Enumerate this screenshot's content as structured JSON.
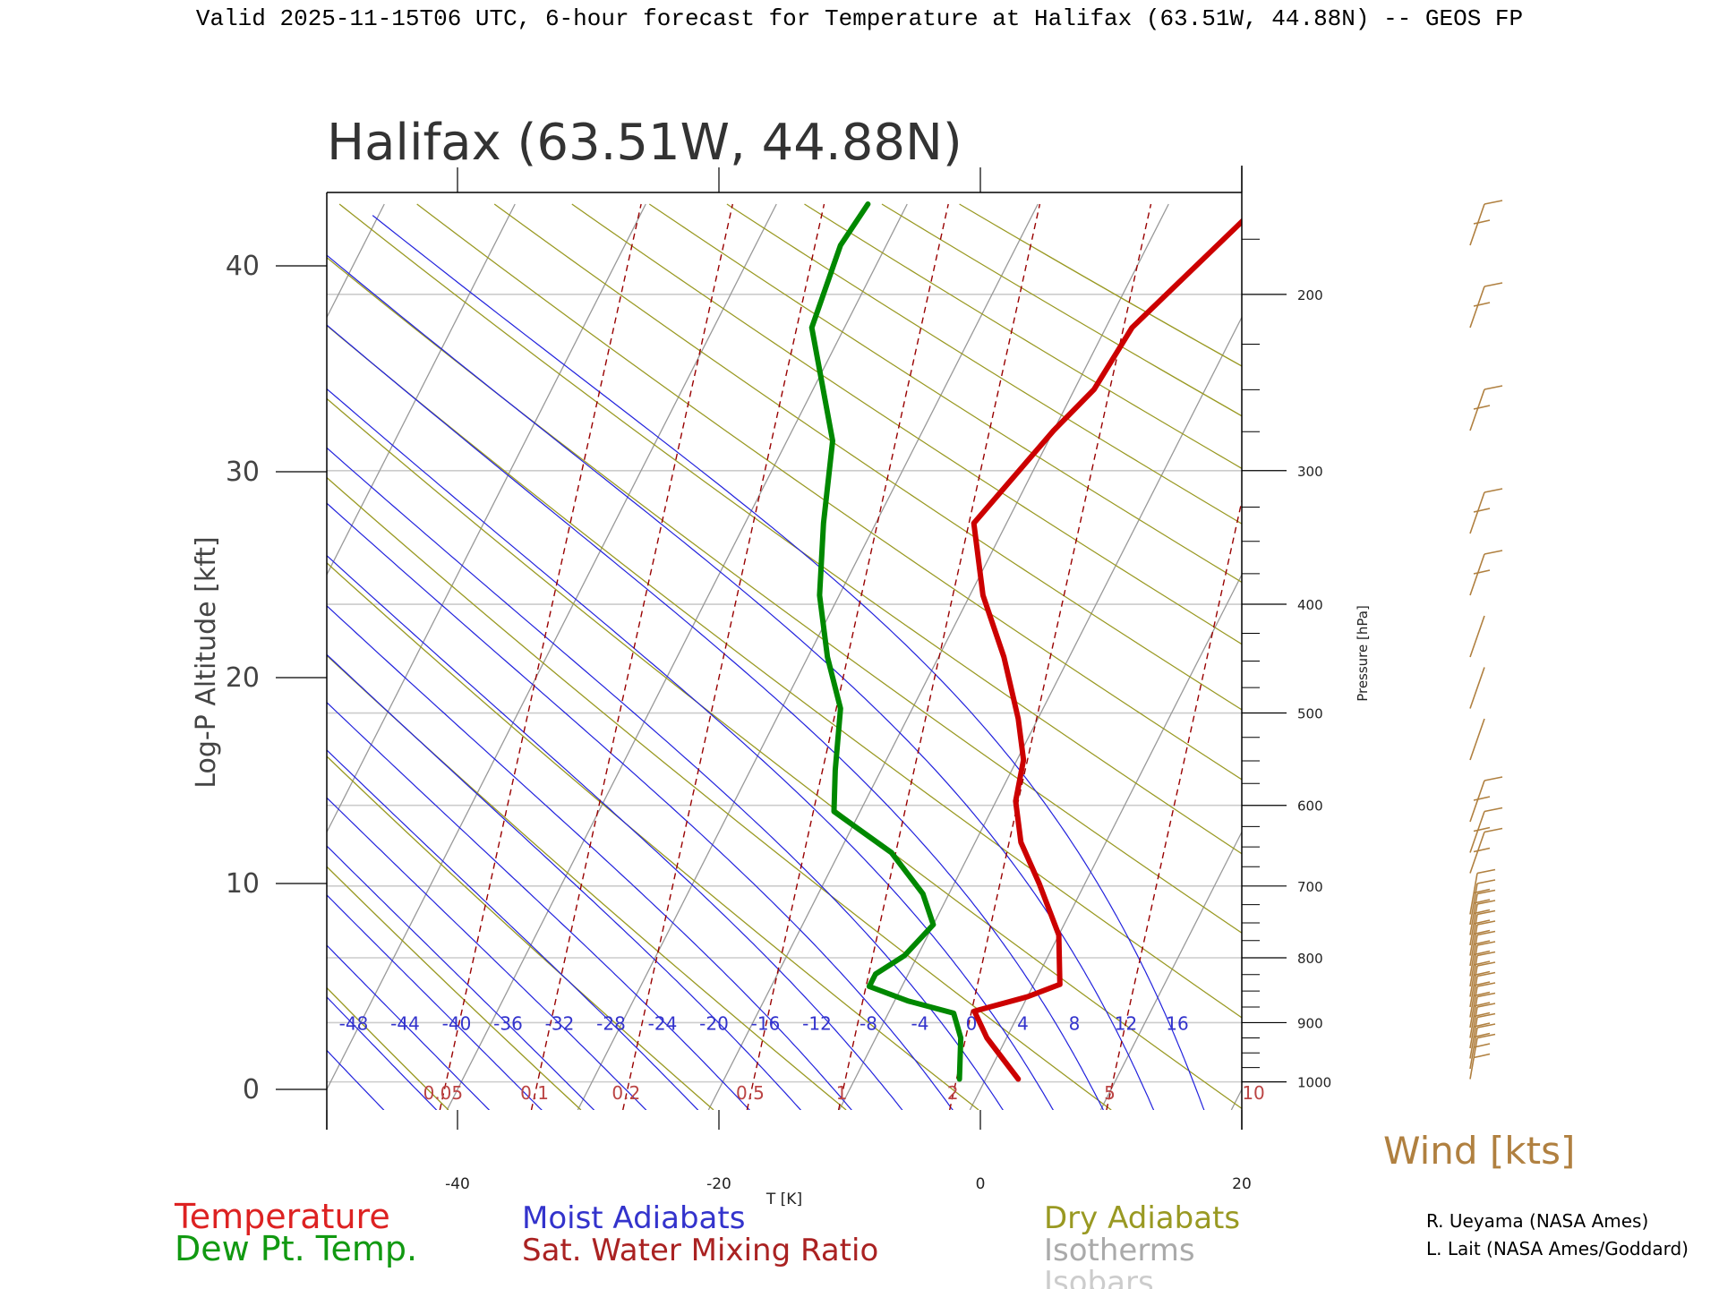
{
  "header": "Valid 2025-11-15T06 UTC, 6-hour forecast for Temperature at Halifax (63.51W, 44.88N) -- GEOS FP",
  "chart_data": {
    "type": "skew-t",
    "title": "Halifax (63.51W, 44.88N)",
    "xlabel": "T [K]",
    "ylabel_left": "Log-P Altitude [kft]",
    "ylabel_right": "Pressure [hPa]",
    "xlim": [
      -50,
      20
    ],
    "ylim_kft": [
      -1,
      43
    ],
    "skew_kft_per_deg": 0.8,
    "x_ticks": [
      -40,
      -20,
      0,
      20
    ],
    "y_ticks_kft": [
      0,
      10,
      20,
      30,
      40
    ],
    "pressure_labels": [
      {
        "p": 1000,
        "label": "1000"
      },
      {
        "p": 900,
        "label": "900"
      },
      {
        "p": 800,
        "label": "800"
      },
      {
        "p": 700,
        "label": "700"
      },
      {
        "p": 600,
        "label": "600"
      },
      {
        "p": 500,
        "label": "500"
      },
      {
        "p": 400,
        "label": "400"
      },
      {
        "p": 300,
        "label": "300"
      },
      {
        "p": 200,
        "label": "200"
      }
    ],
    "pressure_minor_ticks": [
      975,
      950,
      925,
      875,
      850,
      825,
      775,
      750,
      725,
      675,
      650,
      625,
      575,
      550,
      525,
      475,
      450,
      425,
      375,
      350,
      325,
      275,
      250,
      225,
      175
    ],
    "isobars_hpa": [
      1000,
      900,
      800,
      700,
      600,
      500,
      400,
      300,
      200
    ],
    "isotherms_c": [
      -130,
      -120,
      -110,
      -100,
      -90,
      -80,
      -70,
      -60,
      -50,
      -40,
      -30,
      -20,
      -10,
      0,
      10,
      20
    ],
    "dry_adiabats_thetas_k": [
      230,
      240,
      250,
      260,
      270,
      280,
      290,
      300,
      310,
      320,
      330,
      340,
      350,
      360,
      370,
      380,
      390,
      400
    ],
    "moist_adiabats_c": [
      -48,
      -44,
      -40,
      -36,
      -32,
      -28,
      -24,
      -20,
      -16,
      -12,
      -8,
      -4,
      0,
      4,
      8,
      12,
      16
    ],
    "moist_adiabat_labels": [
      "-48",
      "-44",
      "-40",
      "-36",
      "-32",
      "-28",
      "-24",
      "-20",
      "-16",
      "-12",
      "-8",
      "-4",
      "0",
      "4",
      "8",
      "12",
      "16"
    ],
    "mixing_ratio_lines": [
      {
        "w": 0.05,
        "label": "0.05",
        "t_sfc": -41
      },
      {
        "w": 0.1,
        "label": "0.1",
        "t_sfc": -34
      },
      {
        "w": 0.2,
        "label": "0.2",
        "t_sfc": -27
      },
      {
        "w": 0.5,
        "label": "0.5",
        "t_sfc": -17.5
      },
      {
        "w": 1,
        "label": "1",
        "t_sfc": -10.5
      },
      {
        "w": 2,
        "label": "2",
        "t_sfc": -2
      },
      {
        "w": 5,
        "label": "5",
        "t_sfc": 10
      },
      {
        "w": 10,
        "label": "10",
        "t_sfc": 21
      }
    ],
    "series": [
      {
        "name": "Temperature",
        "color": "#cc0000",
        "points": [
          {
            "kft": 0.5,
            "t": 2.5
          },
          {
            "kft": 1.5,
            "t": 0.5
          },
          {
            "kft": 2.5,
            "t": -1.5
          },
          {
            "kft": 3.8,
            "t": -3.5
          },
          {
            "kft": 4.5,
            "t": 0.0
          },
          {
            "kft": 5.1,
            "t": 2.0
          },
          {
            "kft": 7.5,
            "t": 0.0
          },
          {
            "kft": 10.0,
            "t": -3.5
          },
          {
            "kft": 12.0,
            "t": -6.5
          },
          {
            "kft": 14.0,
            "t": -8.5
          },
          {
            "kft": 16.0,
            "t": -9.5
          },
          {
            "kft": 18.0,
            "t": -11.5
          },
          {
            "kft": 21.0,
            "t": -15.0
          },
          {
            "kft": 24.0,
            "t": -19.0
          },
          {
            "kft": 27.5,
            "t": -22.5
          },
          {
            "kft": 32.0,
            "t": -20.0
          },
          {
            "kft": 34.0,
            "t": -18.5
          },
          {
            "kft": 37.0,
            "t": -18.0
          },
          {
            "kft": 43.0,
            "t": -13.0
          }
        ]
      },
      {
        "name": "Dew Pt. Temp.",
        "color": "#008800",
        "points": [
          {
            "kft": 0.5,
            "t": -2.0
          },
          {
            "kft": 2.5,
            "t": -3.5
          },
          {
            "kft": 3.7,
            "t": -5.0
          },
          {
            "kft": 4.3,
            "t": -9.0
          },
          {
            "kft": 5.0,
            "t": -12.5
          },
          {
            "kft": 5.6,
            "t": -12.5
          },
          {
            "kft": 6.5,
            "t": -11.0
          },
          {
            "kft": 8.0,
            "t": -10.0
          },
          {
            "kft": 9.5,
            "t": -12.0
          },
          {
            "kft": 11.5,
            "t": -16.0
          },
          {
            "kft": 13.5,
            "t": -22.0
          },
          {
            "kft": 15.5,
            "t": -23.5
          },
          {
            "kft": 18.5,
            "t": -25.5
          },
          {
            "kft": 21.0,
            "t": -28.5
          },
          {
            "kft": 24.0,
            "t": -31.5
          },
          {
            "kft": 27.5,
            "t": -34.0
          },
          {
            "kft": 31.5,
            "t": -36.5
          },
          {
            "kft": 37.0,
            "t": -42.5
          },
          {
            "kft": 41.0,
            "t": -43.5
          },
          {
            "kft": 43.0,
            "t": -43.0
          }
        ]
      }
    ],
    "wind_barbs_kft": [
      {
        "kft": 0.5,
        "barbs": 1
      },
      {
        "kft": 1.0,
        "barbs": 1
      },
      {
        "kft": 1.5,
        "barbs": 1
      },
      {
        "kft": 2.0,
        "barbs": 1
      },
      {
        "kft": 2.5,
        "barbs": 1
      },
      {
        "kft": 3.0,
        "barbs": 1
      },
      {
        "kft": 3.5,
        "barbs": 1
      },
      {
        "kft": 4.0,
        "barbs": 1
      },
      {
        "kft": 4.5,
        "barbs": 1
      },
      {
        "kft": 5.0,
        "barbs": 1
      },
      {
        "kft": 5.5,
        "barbs": 1
      },
      {
        "kft": 6.0,
        "barbs": 1
      },
      {
        "kft": 6.5,
        "barbs": 1
      },
      {
        "kft": 7.0,
        "barbs": 1
      },
      {
        "kft": 7.5,
        "barbs": 1
      },
      {
        "kft": 8.0,
        "barbs": 1
      },
      {
        "kft": 8.5,
        "barbs": 1
      },
      {
        "kft": 10.5,
        "barbs": 1
      },
      {
        "kft": 11.5,
        "barbs": 1
      },
      {
        "kft": 13.0,
        "barbs": 1
      },
      {
        "kft": 16.0,
        "barbs": 0
      },
      {
        "kft": 18.5,
        "barbs": 0
      },
      {
        "kft": 21.0,
        "barbs": 0
      },
      {
        "kft": 24.0,
        "barbs": 1
      },
      {
        "kft": 27.0,
        "barbs": 1
      },
      {
        "kft": 32.0,
        "barbs": 1
      },
      {
        "kft": 37.0,
        "barbs": 1
      },
      {
        "kft": 41.0,
        "barbs": 1
      }
    ],
    "wind_label": "Wind [kts]",
    "legend": [
      {
        "label": "Temperature",
        "color": "#dd2222"
      },
      {
        "label": "Dew Pt. Temp.",
        "color": "#119911"
      },
      {
        "label": "Moist Adiabats",
        "color": "#3333cc"
      },
      {
        "label": "Sat. Water Mixing Ratio",
        "color": "#aa2222"
      },
      {
        "label": "Dry Adiabats",
        "color": "#999922"
      },
      {
        "label": "Isotherms",
        "color": "#aaaaaa"
      },
      {
        "label": "Isobars",
        "color": "#cccccc"
      }
    ]
  },
  "credits": [
    "R. Ueyama (NASA Ames)",
    "L. Lait (NASA Ames/Goddard)"
  ]
}
